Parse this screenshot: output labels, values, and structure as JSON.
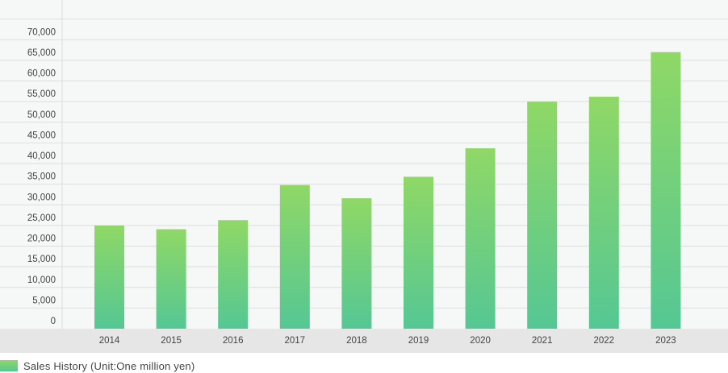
{
  "chart_data": {
    "type": "bar",
    "categories": [
      "2014",
      "2015",
      "2016",
      "2017",
      "2018",
      "2019",
      "2020",
      "2021",
      "2022",
      "2023"
    ],
    "series": [
      {
        "name": "Sales History (Unit:One million yen)",
        "values": [
          25000,
          24100,
          26300,
          34800,
          31600,
          36800,
          43700,
          55000,
          56200,
          67000
        ]
      }
    ],
    "y_ticks": [
      "0",
      "5,000",
      "10,000",
      "15,000",
      "20,000",
      "25,000",
      "30,000",
      "35,000",
      "40,000",
      "45,000",
      "50,000",
      "55,000",
      "60,000",
      "65,000",
      "70,000"
    ],
    "ylim": [
      0,
      75000
    ],
    "title": "",
    "xlabel": "",
    "ylabel": "",
    "grid": true,
    "legend": "bottom-left",
    "colors": {
      "bar_top": "#8fd866",
      "bar_bottom": "#55c794",
      "plot_background": "#f6f8f7",
      "grid": "#dcdedd",
      "x_axis_band": "#e6e6e6",
      "tick_text": "#444444"
    }
  }
}
